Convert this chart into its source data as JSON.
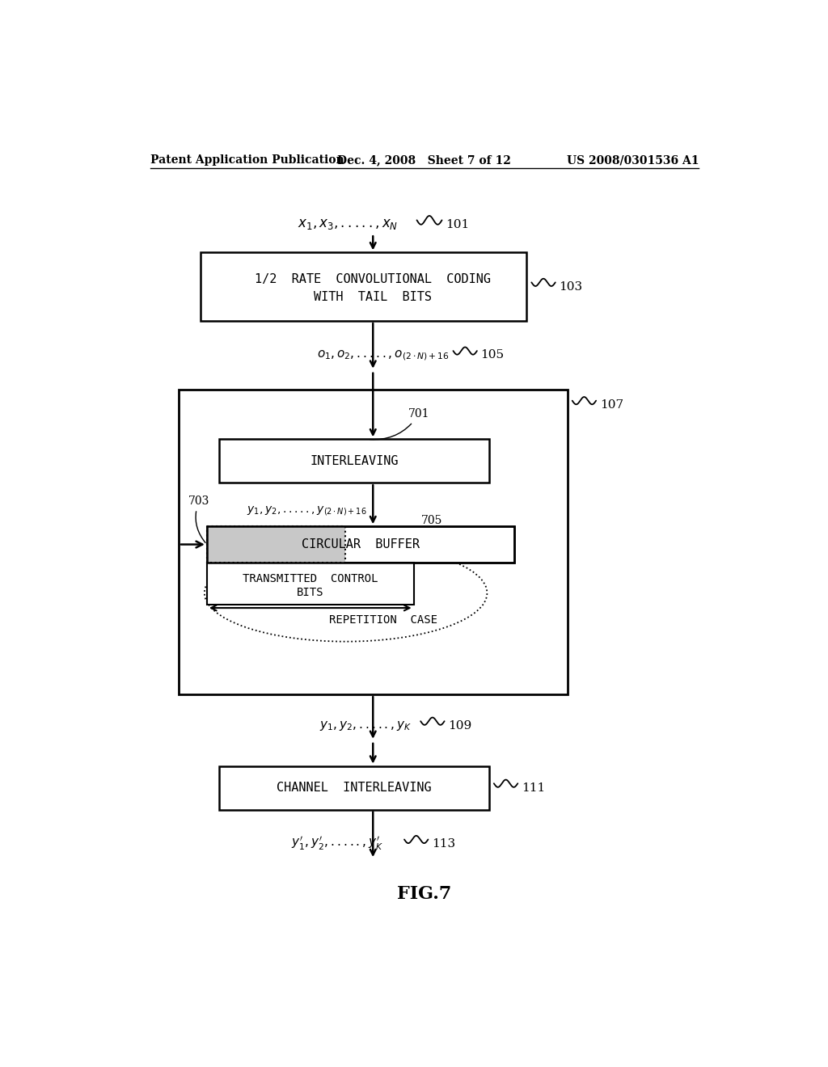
{
  "bg_color": "#ffffff",
  "header_left": "Patent Application Publication",
  "header_mid": "Dec. 4, 2008   Sheet 7 of 12",
  "header_right": "US 2008/0301536 A1",
  "fig_label": "FIG.7"
}
